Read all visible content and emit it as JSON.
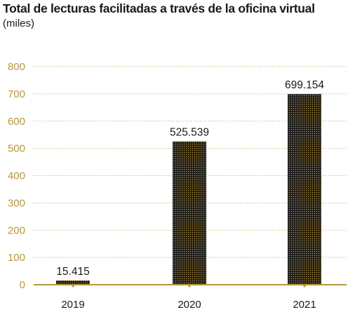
{
  "chart_data": {
    "type": "bar",
    "title": "Total de lecturas facilitadas a través de la oficina virtual",
    "subtitle": "(miles)",
    "categories": [
      "2019",
      "2020",
      "2021"
    ],
    "values": [
      15.415,
      525.539,
      699.154
    ],
    "value_labels": [
      "15.415",
      "525.539",
      "699.154"
    ],
    "ylim": [
      0,
      800
    ],
    "yticks": [
      0,
      100,
      200,
      300,
      400,
      500,
      600,
      700,
      800
    ],
    "grid": true,
    "grid_style": "dotted",
    "bar_color": "#1a1a1a",
    "bar_dot_color": "#b8963e",
    "axis_color": "#b8963e"
  }
}
